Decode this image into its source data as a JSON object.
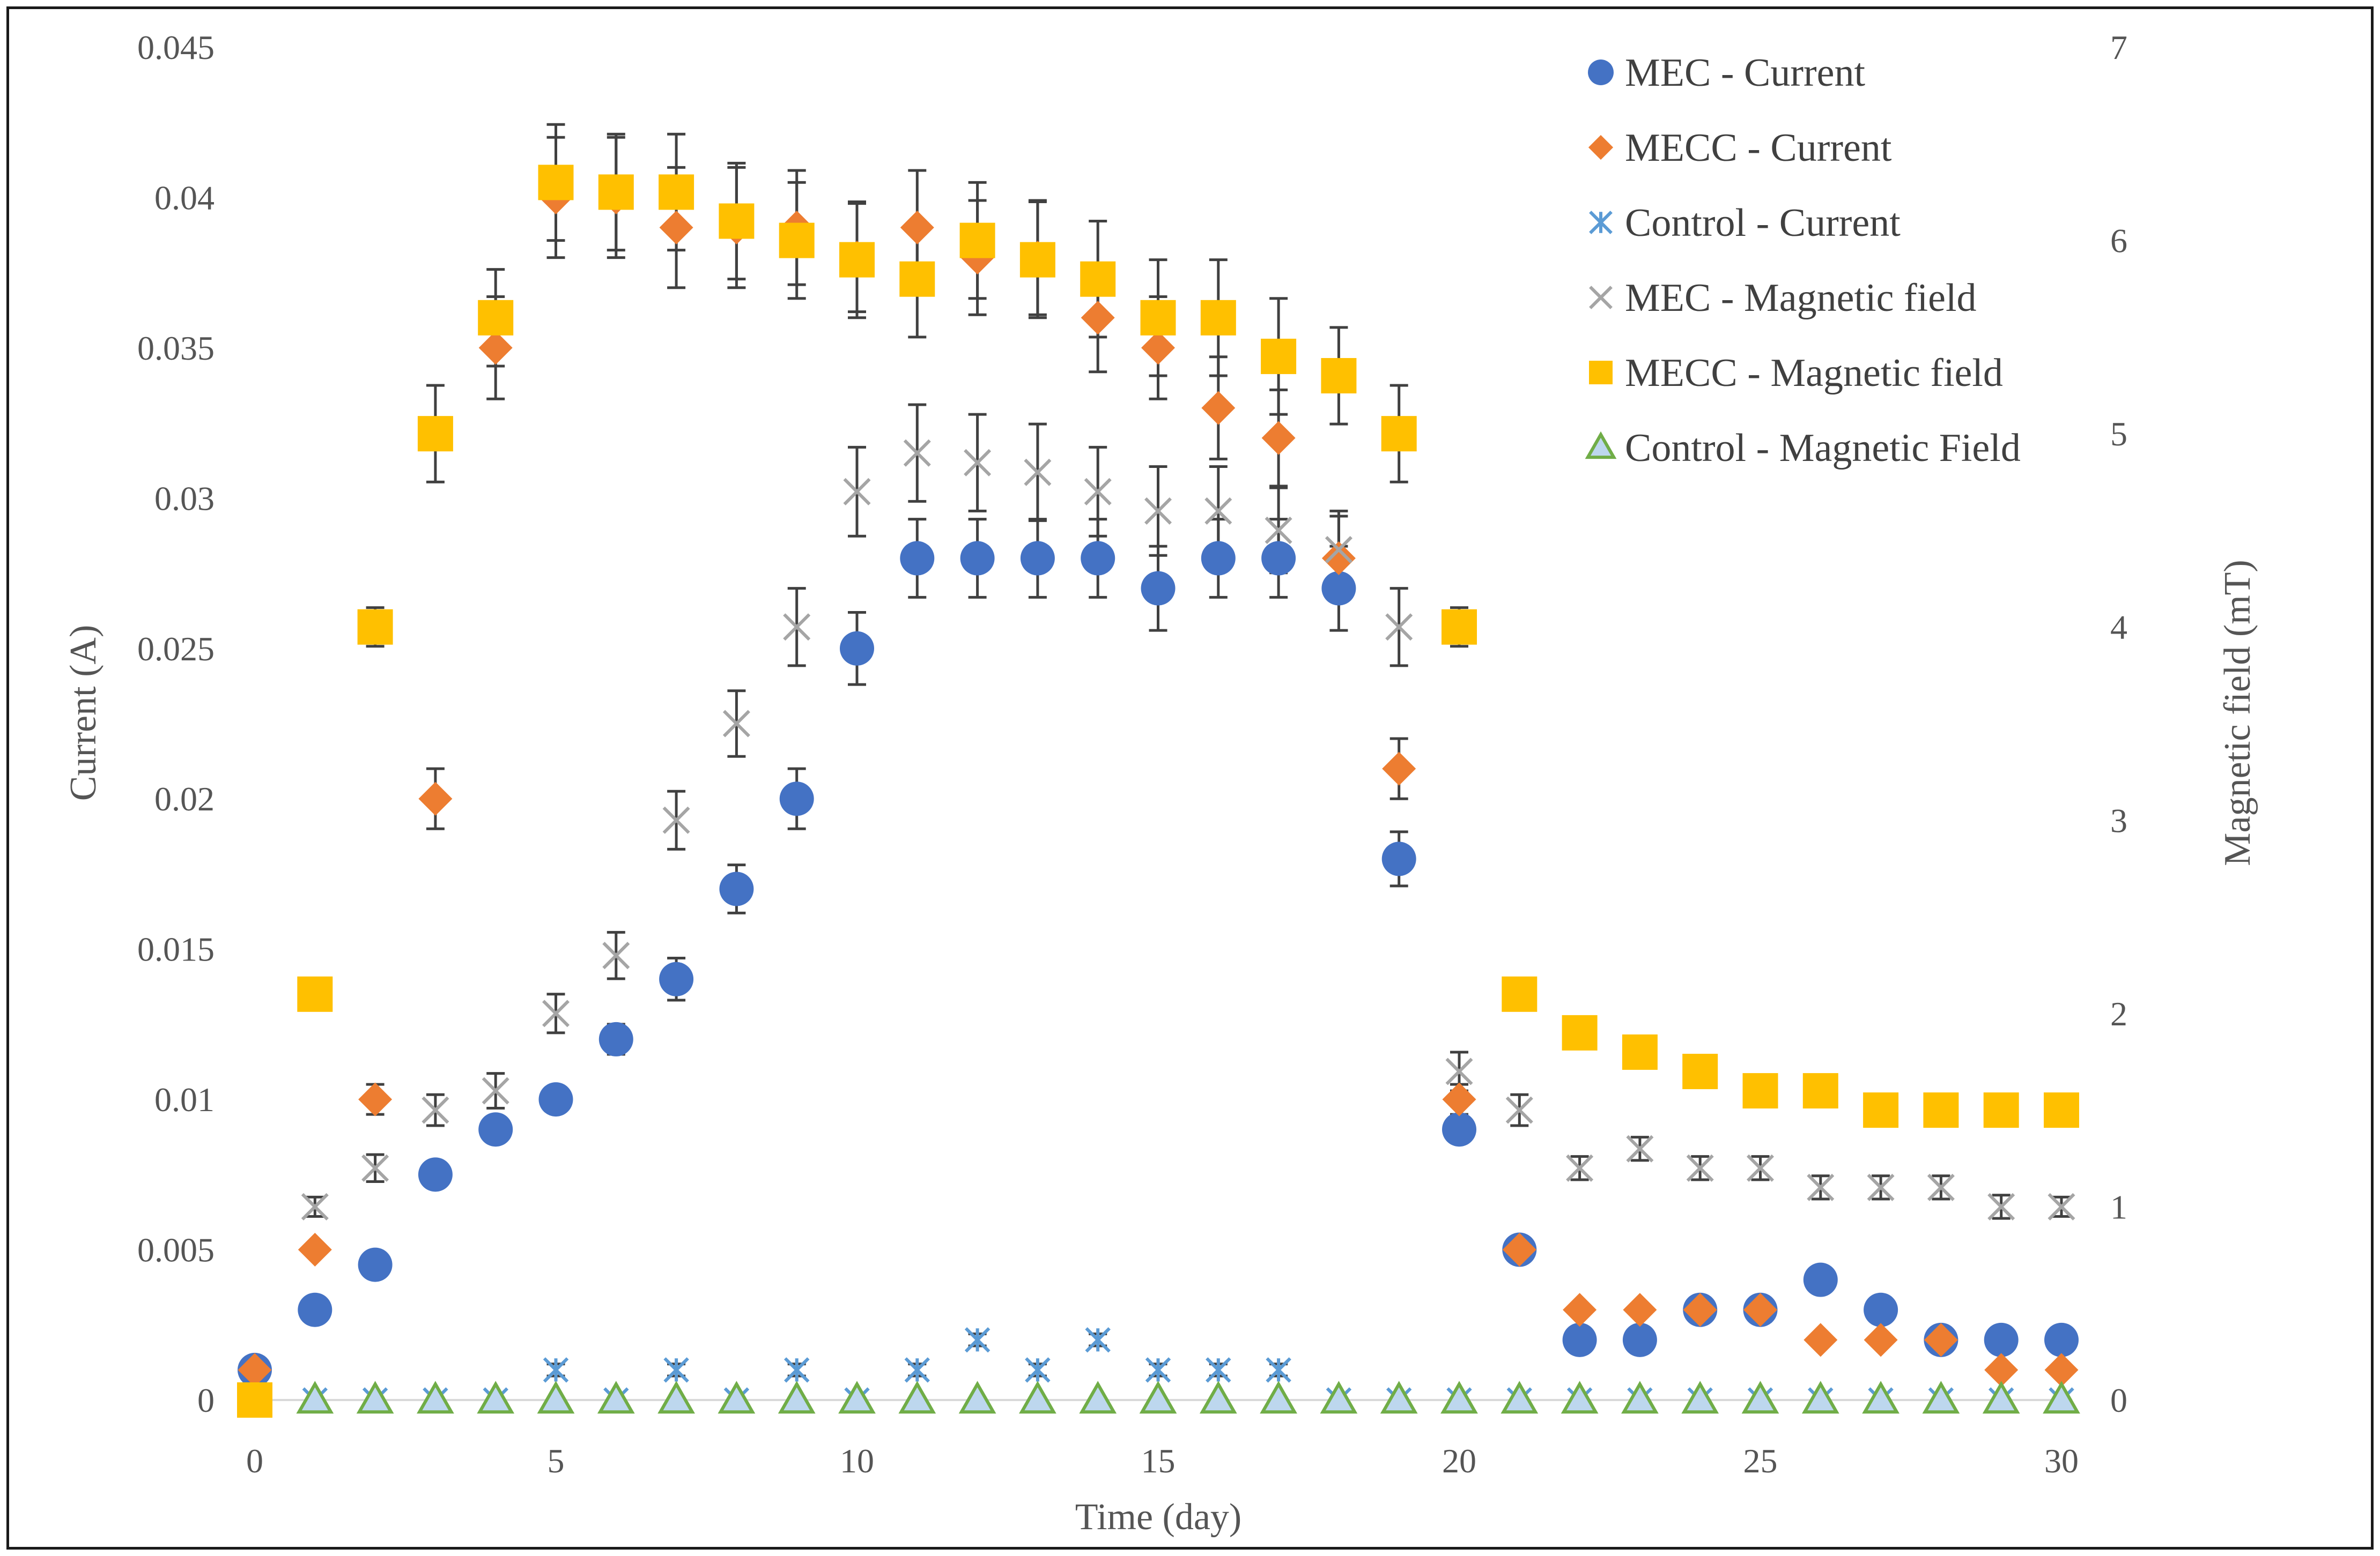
{
  "chart_data": {
    "type": "scatter",
    "title": "",
    "xlabel": "Time (day)",
    "ylabel": "Current (A)",
    "y2label": "Magnetic field (mT)",
    "xlim": [
      0,
      30
    ],
    "ylim": [
      0,
      0.045
    ],
    "y2lim": [
      0,
      7
    ],
    "x_ticks": [
      "0",
      "5",
      "10",
      "15",
      "20",
      "25",
      "30"
    ],
    "y_ticks": [
      "0",
      "0.005",
      "0.01",
      "0.015",
      "0.02",
      "0.025",
      "0.03",
      "0.035",
      "0.04",
      "0.045"
    ],
    "y2_ticks": [
      "0",
      "1",
      "2",
      "3",
      "4",
      "5",
      "6",
      "7"
    ],
    "grid": false,
    "legend_position": "top-right",
    "series": [
      {
        "name": "MEC - Current",
        "axis": "left",
        "marker": "circle",
        "color": "#4472C4",
        "points": [
          [
            0,
            0.001
          ],
          [
            1,
            0.003
          ],
          [
            2,
            0.0045
          ],
          [
            3,
            0.0075
          ],
          [
            4,
            0.009
          ],
          [
            5,
            0.01
          ],
          [
            6,
            0.012
          ],
          [
            7,
            0.014
          ],
          [
            8,
            0.017
          ],
          [
            9,
            0.02
          ],
          [
            10,
            0.025
          ],
          [
            11,
            0.028
          ],
          [
            12,
            0.028
          ],
          [
            13,
            0.028
          ],
          [
            14,
            0.028
          ],
          [
            15,
            0.027
          ],
          [
            16,
            0.028
          ],
          [
            17,
            0.028
          ],
          [
            18,
            0.027
          ],
          [
            19,
            0.018
          ],
          [
            20,
            0.009
          ],
          [
            21,
            0.005
          ],
          [
            22,
            0.002
          ],
          [
            23,
            0.002
          ],
          [
            24,
            0.003
          ],
          [
            25,
            0.003
          ],
          [
            26,
            0.004
          ],
          [
            27,
            0.003
          ],
          [
            28,
            0.002
          ],
          [
            29,
            0.002
          ],
          [
            30,
            0.002
          ]
        ],
        "errors": [
          0,
          0,
          0,
          0,
          0,
          0.0003,
          0.0005,
          0.0007,
          0.0008,
          0.001,
          0.0012,
          0.0013,
          0.0013,
          0.0013,
          0.0013,
          0.0014,
          0.0013,
          0.0013,
          0.0014,
          0.0009,
          0,
          0,
          0,
          0,
          0,
          0,
          0,
          0,
          0,
          0,
          0
        ]
      },
      {
        "name": "MECC - Current",
        "axis": "left",
        "marker": "diamond",
        "color": "#ED7D31",
        "points": [
          [
            0,
            0.001
          ],
          [
            1,
            0.005
          ],
          [
            2,
            0.01
          ],
          [
            3,
            0.02
          ],
          [
            4,
            0.035
          ],
          [
            5,
            0.04
          ],
          [
            6,
            0.04
          ],
          [
            7,
            0.039
          ],
          [
            8,
            0.039
          ],
          [
            9,
            0.039
          ],
          [
            10,
            0.038
          ],
          [
            11,
            0.039
          ],
          [
            12,
            0.038
          ],
          [
            13,
            0.038
          ],
          [
            14,
            0.036
          ],
          [
            15,
            0.035
          ],
          [
            16,
            0.033
          ],
          [
            17,
            0.032
          ],
          [
            18,
            0.028
          ],
          [
            19,
            0.021
          ],
          [
            20,
            0.01
          ],
          [
            21,
            0.005
          ],
          [
            22,
            0.003
          ],
          [
            23,
            0.003
          ],
          [
            24,
            0.003
          ],
          [
            25,
            0.003
          ],
          [
            26,
            0.002
          ],
          [
            27,
            0.002
          ],
          [
            28,
            0.002
          ],
          [
            29,
            0.001
          ],
          [
            30,
            0.001
          ]
        ],
        "errors": [
          0,
          0,
          0.0005,
          0.001,
          0.0017,
          0.002,
          0.002,
          0.002,
          0.002,
          0.0019,
          0.0018,
          0.0019,
          0.0019,
          0.0019,
          0.0018,
          0.0017,
          0.0017,
          0.0016,
          0.0014,
          0.001,
          0.0005,
          0,
          0,
          0,
          0,
          0,
          0,
          0,
          0,
          0,
          0
        ]
      },
      {
        "name": "Control - Current",
        "axis": "left",
        "marker": "asterisk",
        "color": "#5B9BD5",
        "points": [
          [
            1,
            0
          ],
          [
            2,
            0
          ],
          [
            3,
            0
          ],
          [
            4,
            0
          ],
          [
            5,
            0.001
          ],
          [
            6,
            0
          ],
          [
            7,
            0.001
          ],
          [
            8,
            0
          ],
          [
            9,
            0.001
          ],
          [
            10,
            0
          ],
          [
            11,
            0.001
          ],
          [
            12,
            0.002
          ],
          [
            13,
            0.001
          ],
          [
            14,
            0.002
          ],
          [
            15,
            0.001
          ],
          [
            16,
            0.001
          ],
          [
            17,
            0.001
          ],
          [
            18,
            0
          ],
          [
            19,
            0
          ],
          [
            20,
            0
          ],
          [
            21,
            0
          ],
          [
            22,
            0
          ],
          [
            23,
            0
          ],
          [
            24,
            0
          ],
          [
            25,
            0
          ],
          [
            26,
            0
          ],
          [
            27,
            0
          ],
          [
            28,
            0
          ],
          [
            29,
            0
          ],
          [
            30,
            0
          ]
        ],
        "errors": [
          0,
          0,
          0,
          0,
          0.0002,
          0,
          0.0002,
          0,
          0.0002,
          0,
          0.0002,
          0.0002,
          0.0002,
          0.0002,
          0.0002,
          0.0002,
          0.0002,
          0,
          0,
          0,
          0,
          0,
          0,
          0,
          0,
          0,
          0,
          0,
          0,
          0
        ]
      },
      {
        "name": "MEC - Magnetic field",
        "axis": "right",
        "marker": "x",
        "color": "#A5A5A5",
        "points": [
          [
            1,
            1
          ],
          [
            2,
            1.2
          ],
          [
            3,
            1.5
          ],
          [
            4,
            1.6
          ],
          [
            5,
            2
          ],
          [
            6,
            2.3
          ],
          [
            7,
            3
          ],
          [
            8,
            3.5
          ],
          [
            9,
            4
          ],
          [
            10,
            4.7
          ],
          [
            11,
            4.9
          ],
          [
            12,
            4.85
          ],
          [
            13,
            4.8
          ],
          [
            14,
            4.7
          ],
          [
            15,
            4.6
          ],
          [
            16,
            4.6
          ],
          [
            17,
            4.5
          ],
          [
            18,
            4.4
          ],
          [
            19,
            4
          ],
          [
            20,
            1.7
          ],
          [
            21,
            1.5
          ],
          [
            22,
            1.2
          ],
          [
            23,
            1.3
          ],
          [
            24,
            1.2
          ],
          [
            25,
            1.2
          ],
          [
            26,
            1.1
          ],
          [
            27,
            1.1
          ],
          [
            28,
            1.1
          ],
          [
            29,
            1
          ],
          [
            30,
            1
          ]
        ],
        "errors": [
          0.05,
          0.07,
          0.08,
          0.09,
          0.1,
          0.12,
          0.15,
          0.17,
          0.2,
          0.23,
          0.25,
          0.25,
          0.25,
          0.23,
          0.23,
          0.23,
          0.22,
          0.2,
          0.2,
          0.1,
          0.08,
          0.06,
          0.06,
          0.06,
          0.06,
          0.06,
          0.06,
          0.06,
          0.06,
          0.05
        ]
      },
      {
        "name": "MECC - Magnetic field",
        "axis": "right",
        "marker": "square",
        "color": "#FFC000",
        "points": [
          [
            0,
            0
          ],
          [
            1,
            2.1
          ],
          [
            2,
            4
          ],
          [
            3,
            5
          ],
          [
            4,
            5.6
          ],
          [
            5,
            6.3
          ],
          [
            6,
            6.25
          ],
          [
            7,
            6.25
          ],
          [
            8,
            6.1
          ],
          [
            9,
            6
          ],
          [
            10,
            5.9
          ],
          [
            11,
            5.8
          ],
          [
            12,
            6
          ],
          [
            13,
            5.9
          ],
          [
            14,
            5.8
          ],
          [
            15,
            5.6
          ],
          [
            16,
            5.6
          ],
          [
            17,
            5.4
          ],
          [
            18,
            5.3
          ],
          [
            19,
            5
          ],
          [
            20,
            4
          ],
          [
            21,
            2.1
          ],
          [
            22,
            1.9
          ],
          [
            23,
            1.8
          ],
          [
            24,
            1.7
          ],
          [
            25,
            1.6
          ],
          [
            26,
            1.6
          ],
          [
            27,
            1.5
          ],
          [
            28,
            1.5
          ],
          [
            29,
            1.5
          ],
          [
            30,
            1.5
          ]
        ],
        "errors": [
          0,
          0.05,
          0.1,
          0.25,
          0.25,
          0.3,
          0.3,
          0.3,
          0.3,
          0.3,
          0.3,
          0.3,
          0.3,
          0.3,
          0.3,
          0.3,
          0.3,
          0.3,
          0.25,
          0.25,
          0.1,
          0.05,
          0.03,
          0.03,
          0.03,
          0.03,
          0.03,
          0.03,
          0.03,
          0.03,
          0.03
        ]
      },
      {
        "name": "Control - Magnetic Field",
        "axis": "right",
        "marker": "triangle",
        "color": "#70AD47",
        "points": [
          [
            1,
            0
          ],
          [
            2,
            0
          ],
          [
            3,
            0
          ],
          [
            4,
            0
          ],
          [
            5,
            0
          ],
          [
            6,
            0
          ],
          [
            7,
            0
          ],
          [
            8,
            0
          ],
          [
            9,
            0
          ],
          [
            10,
            0
          ],
          [
            11,
            0
          ],
          [
            12,
            0
          ],
          [
            13,
            0
          ],
          [
            14,
            0
          ],
          [
            15,
            0
          ],
          [
            16,
            0
          ],
          [
            17,
            0
          ],
          [
            18,
            0
          ],
          [
            19,
            0
          ],
          [
            20,
            0
          ],
          [
            21,
            0
          ],
          [
            22,
            0
          ],
          [
            23,
            0
          ],
          [
            24,
            0
          ],
          [
            25,
            0
          ],
          [
            26,
            0
          ],
          [
            27,
            0
          ],
          [
            28,
            0
          ],
          [
            29,
            0
          ],
          [
            30,
            0
          ]
        ],
        "errors": [
          0,
          0,
          0,
          0,
          0,
          0,
          0,
          0,
          0,
          0,
          0,
          0,
          0,
          0,
          0,
          0,
          0,
          0,
          0,
          0,
          0,
          0,
          0,
          0,
          0,
          0,
          0,
          0,
          0,
          0
        ]
      }
    ]
  },
  "colors": {
    "axis_line": "#D9D9D9",
    "text": "#595959",
    "error_bar": "#404040"
  }
}
